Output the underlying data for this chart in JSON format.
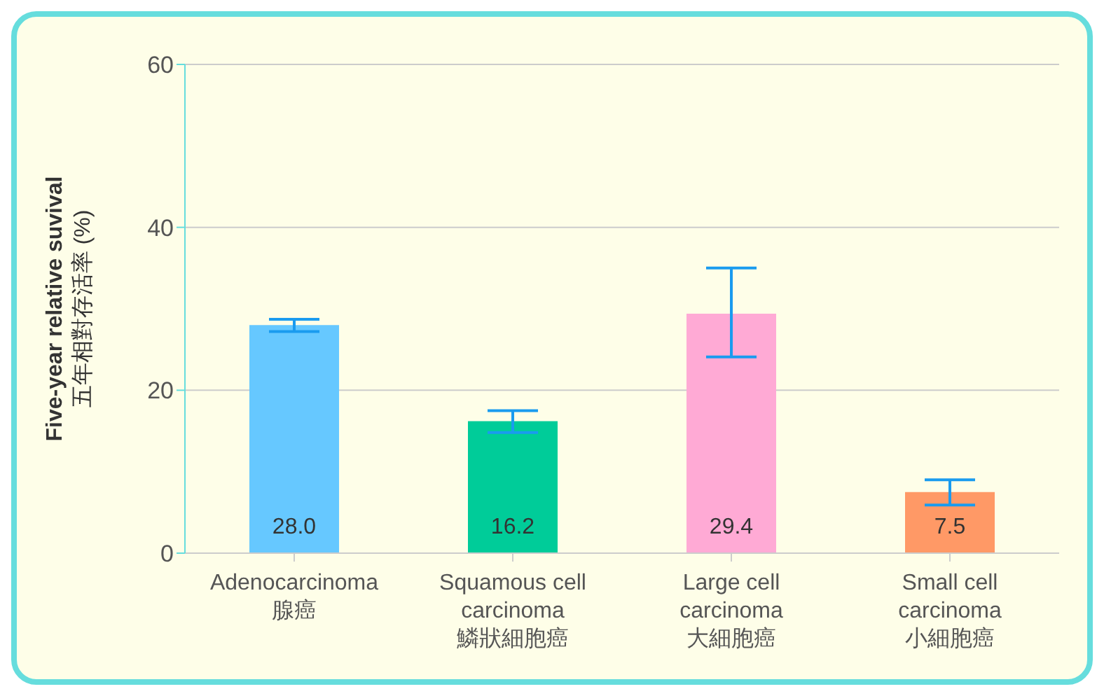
{
  "chart_data": {
    "type": "bar",
    "ylabel": "Five-year relative suvival\n五年相對存活率 (%)",
    "categories": [
      "Adenocarcinoma\n腺癌",
      "Squamous cell\ncarcinoma\n鱗狀細胞癌",
      "Large cell\ncarcinoma\n大細胞癌",
      "Small cell\ncarcinoma\n小細胞癌"
    ],
    "values": [
      28.0,
      16.2,
      29.4,
      7.5
    ],
    "colors": [
      "#66c8ff",
      "#00cc99",
      "#ffaad5",
      "#ff9966"
    ],
    "errors": [
      [
        27.2,
        28.7
      ],
      [
        14.8,
        17.5
      ],
      [
        24.1,
        35.0
      ],
      [
        5.9,
        9.0
      ]
    ],
    "value_labels": [
      "28.0",
      "16.2",
      "29.4",
      "7.5"
    ],
    "ylim": [
      0,
      60
    ],
    "yticks": [
      0,
      20,
      40,
      60
    ],
    "grid": "y",
    "legend": false
  }
}
